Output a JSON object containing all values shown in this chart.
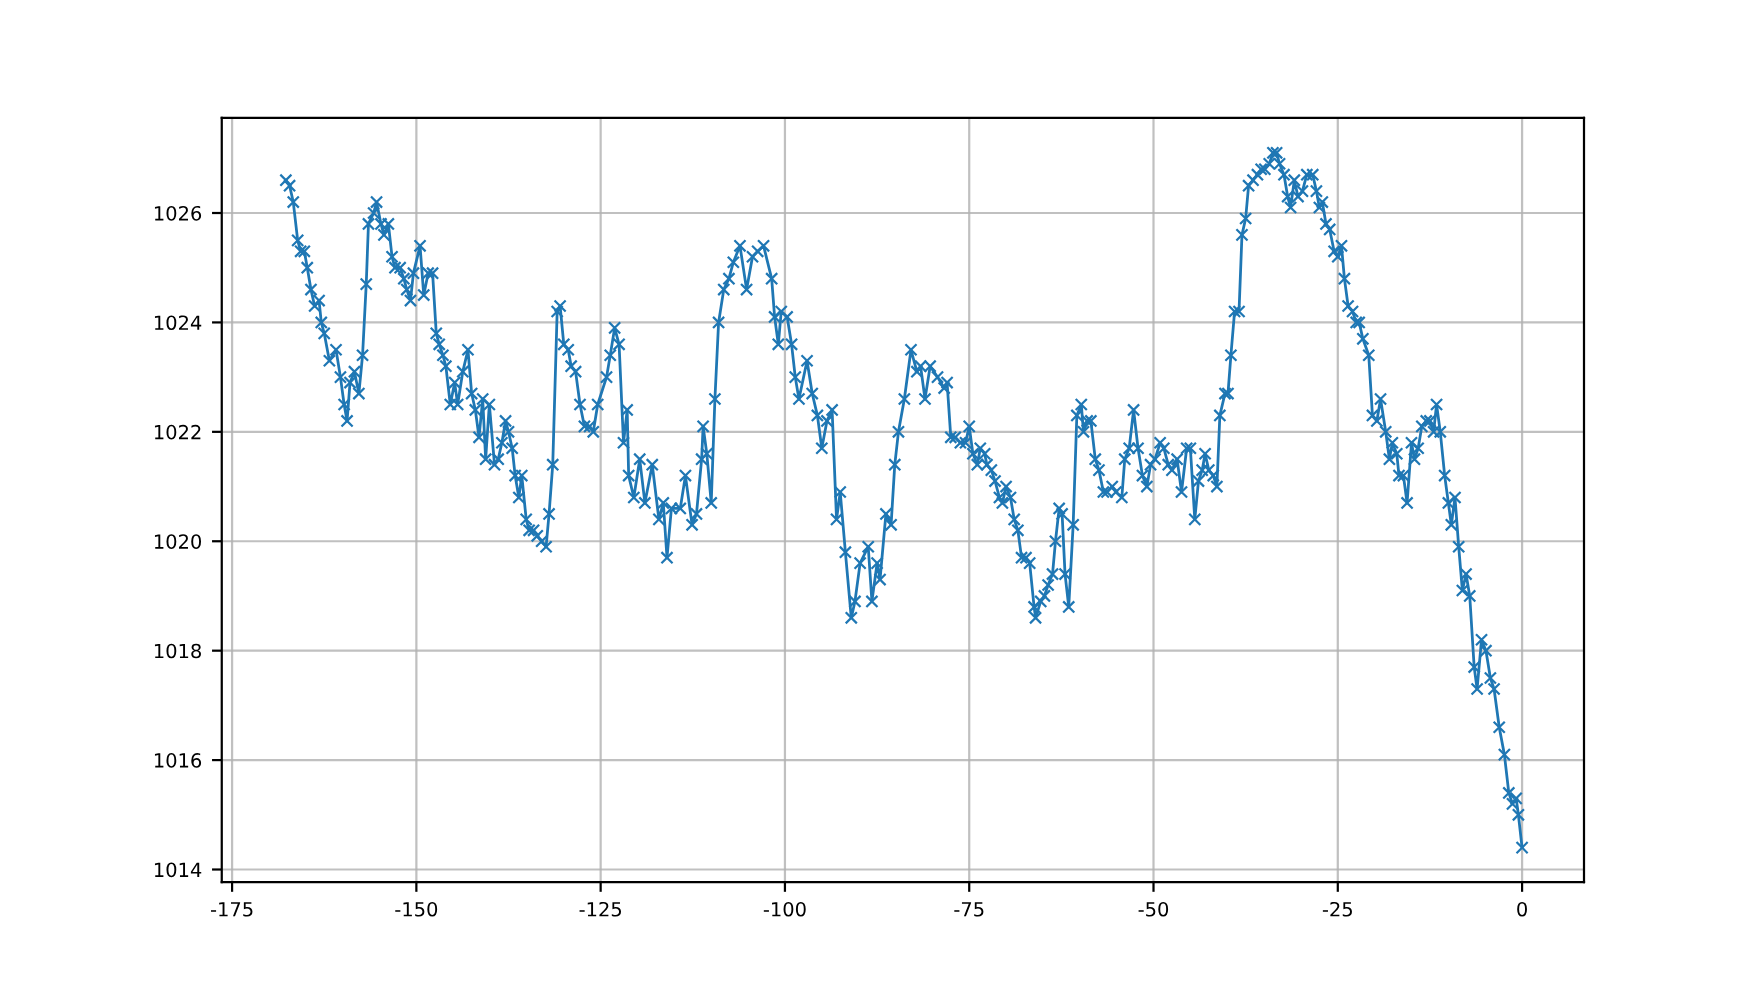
{
  "chart_data": {
    "type": "line",
    "marker": "cross",
    "grid": true,
    "xlim": [
      -176.4,
      8.4
    ],
    "ylim": [
      1013.77,
      1027.74
    ],
    "xticks": [
      -175,
      -150,
      -125,
      -100,
      -75,
      -50,
      -25,
      0
    ],
    "yticks": [
      1014,
      1016,
      1018,
      1020,
      1022,
      1024,
      1026
    ],
    "series": [
      {
        "color": "#1f77b4",
        "x": [
          -167.7,
          -167.2,
          -166.7,
          -166.1,
          -165.7,
          -165.2,
          -164.8,
          -164.3,
          -163.8,
          -163.2,
          -162.9,
          -162.5,
          -161.8,
          -160.9,
          -160.3,
          -159.8,
          -159.4,
          -159.0,
          -158.4,
          -157.8,
          -157.3,
          -156.8,
          -156.5,
          -155.8,
          -155.4,
          -154.8,
          -154.4,
          -153.8,
          -153.3,
          -152.9,
          -152.2,
          -151.7,
          -151.3,
          -150.8,
          -150.4,
          -149.5,
          -149.0,
          -148.4,
          -147.8,
          -147.3,
          -146.9,
          -146.4,
          -146.0,
          -145.4,
          -144.8,
          -144.4,
          -143.7,
          -143.0,
          -142.5,
          -142.0,
          -141.5,
          -141.0,
          -140.6,
          -140.1,
          -139.4,
          -138.9,
          -138.4,
          -137.9,
          -137.5,
          -137.0,
          -136.6,
          -136.1,
          -135.7,
          -135.1,
          -134.7,
          -134.1,
          -133.6,
          -133.0,
          -132.4,
          -132.0,
          -131.5,
          -130.9,
          -130.5,
          -130.0,
          -129.4,
          -129.0,
          -128.4,
          -127.8,
          -127.2,
          -126.5,
          -126.0,
          -125.4,
          -124.2,
          -123.7,
          -123.1,
          -122.5,
          -121.9,
          -121.4,
          -121.2,
          -120.5,
          -119.7,
          -119.0,
          -118.0,
          -117.1,
          -116.5,
          -116.0,
          -115.4,
          -114.2,
          -113.5,
          -112.6,
          -112.0,
          -111.3,
          -111.1,
          -110.6,
          -110.0,
          -109.5,
          -109.0,
          -108.3,
          -107.6,
          -107.0,
          -106.1,
          -105.2,
          -104.4,
          -103.7,
          -102.9,
          -101.8,
          -101.4,
          -100.9,
          -100.5,
          -99.7,
          -99.1,
          -98.6,
          -98.1,
          -97.0,
          -96.3,
          -95.6,
          -95.0,
          -94.3,
          -93.6,
          -93.0,
          -92.5,
          -91.8,
          -91.0,
          -90.5,
          -89.8,
          -88.7,
          -88.2,
          -87.5,
          -87.1,
          -86.3,
          -85.6,
          -85.1,
          -84.6,
          -83.8,
          -82.9,
          -82.1,
          -81.6,
          -81.0,
          -80.3,
          -79.3,
          -78.4,
          -78.0,
          -77.5,
          -76.9,
          -76.2,
          -75.5,
          -75.0,
          -74.5,
          -73.9,
          -73.5,
          -72.9,
          -72.6,
          -72.0,
          -71.5,
          -70.9,
          -70.5,
          -70.0,
          -69.4,
          -68.9,
          -68.4,
          -67.9,
          -67.3,
          -66.8,
          -66.2,
          -66.0,
          -65.3,
          -64.8,
          -64.3,
          -63.7,
          -63.3,
          -62.8,
          -62.4,
          -62.0,
          -61.5,
          -60.9,
          -60.4,
          -59.8,
          -59.5,
          -59.0,
          -58.5,
          -57.9,
          -57.4,
          -56.8,
          -56.3,
          -55.6,
          -55.1,
          -54.3,
          -53.9,
          -53.3,
          -52.7,
          -52.1,
          -51.5,
          -50.9,
          -50.4,
          -49.8,
          -49.1,
          -48.6,
          -48.0,
          -47.5,
          -46.8,
          -46.2,
          -45.5,
          -45.0,
          -44.4,
          -43.9,
          -43.4,
          -43.0,
          -42.5,
          -41.9,
          -41.4,
          -41.0,
          -40.3,
          -39.9,
          -39.5,
          -39.0,
          -38.4,
          -38.0,
          -37.5,
          -37.1,
          -36.5,
          -35.9,
          -35.4,
          -34.9,
          -34.3,
          -33.8,
          -33.3,
          -32.9,
          -32.3,
          -31.8,
          -31.4,
          -30.9,
          -30.4,
          -29.8,
          -29.2,
          -28.4,
          -27.9,
          -27.5,
          -27.1,
          -26.6,
          -26.1,
          -25.5,
          -25.0,
          -24.5,
          -24.1,
          -23.6,
          -23.0,
          -22.5,
          -22.1,
          -21.6,
          -20.8,
          -20.3,
          -19.7,
          -19.2,
          -18.5,
          -18.0,
          -17.6,
          -17.0,
          -16.7,
          -16.1,
          -15.6,
          -15.0,
          -14.6,
          -14.1,
          -13.6,
          -13.0,
          -12.5,
          -12.0,
          -11.6,
          -11.1,
          -10.5,
          -10.0,
          -9.6,
          -9.1,
          -8.6,
          -8.1,
          -7.6,
          -7.1,
          -6.5,
          -6.1,
          -5.5,
          -4.9,
          -4.3,
          -3.8,
          -3.1,
          -2.4,
          -1.8,
          -1.3,
          -0.8,
          -0.5,
          0
        ],
        "values": [
          1026.6,
          1026.5,
          1026.2,
          1025.5,
          1025.3,
          1025.3,
          1025.0,
          1024.6,
          1024.3,
          1024.4,
          1024.0,
          1023.8,
          1023.3,
          1023.5,
          1023.0,
          1022.5,
          1022.2,
          1022.9,
          1023.1,
          1022.7,
          1023.4,
          1024.7,
          1025.8,
          1026.0,
          1026.2,
          1025.8,
          1025.6,
          1025.8,
          1025.2,
          1025.0,
          1025.0,
          1024.8,
          1024.6,
          1024.4,
          1024.9,
          1025.4,
          1024.5,
          1024.9,
          1024.9,
          1023.8,
          1023.6,
          1023.4,
          1023.2,
          1022.5,
          1022.9,
          1022.5,
          1023.1,
          1023.5,
          1022.7,
          1022.4,
          1021.9,
          1022.6,
          1021.5,
          1022.5,
          1021.4,
          1021.5,
          1021.8,
          1022.2,
          1022.0,
          1021.7,
          1021.2,
          1020.8,
          1021.2,
          1020.4,
          1020.2,
          1020.2,
          1020.1,
          1020.0,
          1019.9,
          1020.5,
          1021.4,
          1024.2,
          1024.3,
          1023.6,
          1023.5,
          1023.2,
          1023.1,
          1022.5,
          1022.1,
          1022.1,
          1022.0,
          1022.5,
          1023.0,
          1023.4,
          1023.9,
          1023.6,
          1021.8,
          1022.4,
          1021.2,
          1020.8,
          1021.5,
          1020.7,
          1021.4,
          1020.4,
          1020.7,
          1019.7,
          1020.6,
          1020.6,
          1021.2,
          1020.3,
          1020.5,
          1021.5,
          1022.1,
          1021.6,
          1020.7,
          1022.6,
          1024.0,
          1024.6,
          1024.8,
          1025.1,
          1025.4,
          1024.6,
          1025.2,
          1025.3,
          1025.4,
          1024.8,
          1024.1,
          1023.6,
          1024.2,
          1024.1,
          1023.6,
          1023.0,
          1022.6,
          1023.3,
          1022.7,
          1022.3,
          1021.7,
          1022.2,
          1022.4,
          1020.4,
          1020.9,
          1019.8,
          1018.6,
          1018.9,
          1019.6,
          1019.9,
          1018.9,
          1019.6,
          1019.3,
          1020.5,
          1020.3,
          1021.4,
          1022.0,
          1022.6,
          1023.5,
          1023.1,
          1023.2,
          1022.6,
          1023.2,
          1023.0,
          1022.8,
          1022.9,
          1021.9,
          1021.9,
          1021.8,
          1021.8,
          1022.1,
          1021.6,
          1021.4,
          1021.7,
          1021.6,
          1021.4,
          1021.3,
          1021.1,
          1020.8,
          1020.7,
          1021.0,
          1020.8,
          1020.4,
          1020.2,
          1019.7,
          1019.7,
          1019.6,
          1018.8,
          1018.6,
          1018.9,
          1019.0,
          1019.2,
          1019.4,
          1020.0,
          1020.6,
          1020.5,
          1019.4,
          1018.8,
          1020.3,
          1022.3,
          1022.5,
          1022.0,
          1022.2,
          1022.2,
          1021.5,
          1021.3,
          1020.9,
          1020.9,
          1021.0,
          1020.9,
          1020.8,
          1021.5,
          1021.7,
          1022.4,
          1021.7,
          1021.2,
          1021.0,
          1021.4,
          1021.5,
          1021.8,
          1021.7,
          1021.4,
          1021.3,
          1021.5,
          1020.9,
          1021.7,
          1021.7,
          1020.4,
          1021.1,
          1021.3,
          1021.6,
          1021.3,
          1021.2,
          1021.0,
          1022.3,
          1022.7,
          1022.7,
          1023.4,
          1024.2,
          1024.2,
          1025.6,
          1025.9,
          1026.5,
          1026.6,
          1026.7,
          1026.8,
          1026.8,
          1026.9,
          1027.1,
          1027.1,
          1026.9,
          1026.7,
          1026.3,
          1026.1,
          1026.6,
          1026.3,
          1026.4,
          1026.7,
          1026.7,
          1026.4,
          1026.1,
          1026.2,
          1025.8,
          1025.7,
          1025.3,
          1025.2,
          1025.4,
          1024.8,
          1024.3,
          1024.2,
          1024.0,
          1024.0,
          1023.7,
          1023.4,
          1022.3,
          1022.2,
          1022.6,
          1022.0,
          1021.5,
          1021.8,
          1021.6,
          1021.2,
          1021.2,
          1020.7,
          1021.8,
          1021.5,
          1021.7,
          1022.1,
          1022.2,
          1022.2,
          1022.0,
          1022.5,
          1022.0,
          1021.2,
          1020.7,
          1020.3,
          1020.8,
          1019.9,
          1019.1,
          1019.4,
          1019.0,
          1017.7,
          1017.3,
          1018.2,
          1018.0,
          1017.5,
          1017.3,
          1016.6,
          1016.1,
          1015.4,
          1015.2,
          1015.3,
          1015.0,
          1014.4
        ]
      }
    ]
  }
}
